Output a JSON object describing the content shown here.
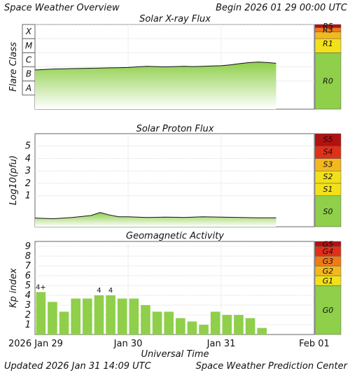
{
  "header": {
    "title": "Space Weather Overview",
    "begin": "Begin 2026 01 29 00:00 UTC",
    "updated": "Updated 2026 Jan 31 14:09 UTC",
    "credit": "Space Weather Prediction Center"
  },
  "colors": {
    "fill_green": "#8fcf4a",
    "bar_green": "#8fcf4a",
    "line": "#111111",
    "scale": [
      "#8fcf4a",
      "#f2e11a",
      "#f4b81f",
      "#ef7a1a",
      "#e0301a",
      "#b01212"
    ]
  },
  "x_axis": {
    "xlabel": "Universal Time",
    "ticks": [
      {
        "t": 0,
        "label": "2026 Jan 29"
      },
      {
        "t": 1,
        "label": "Jan 30"
      },
      {
        "t": 2,
        "label": "Jan 31"
      },
      {
        "t": 3,
        "label": "Feb 01"
      }
    ],
    "range_days": [
      0,
      3
    ]
  },
  "chart_data": [
    {
      "type": "area",
      "title": "Solar X-ray Flux",
      "ylabel": "Flare Class",
      "y_scale": "log",
      "ylim": [
        1e-09,
        0.001
      ],
      "y_ticks": [
        "A",
        "B",
        "C",
        "M",
        "X"
      ],
      "scale_labels": [
        "R0",
        "R1",
        "R3",
        "R5"
      ],
      "series": [
        {
          "x_days": [
            0,
            0.1,
            0.2,
            0.3,
            0.4,
            0.5,
            0.6,
            0.7,
            0.8,
            0.9,
            1.0,
            1.1,
            1.2,
            1.3,
            1.4,
            1.5,
            1.6,
            1.7,
            1.8,
            1.9,
            2.0,
            2.1,
            2.2,
            2.3,
            2.4,
            2.5,
            2.59
          ],
          "y": [
            6e-07,
            6.5e-07,
            7e-07,
            7.2e-07,
            7.5e-07,
            7.8e-07,
            8e-07,
            8.2e-07,
            8.5e-07,
            8.7e-07,
            9e-07,
            1e-06,
            1.1e-06,
            1.05e-06,
            1e-06,
            1.05e-06,
            1.1e-06,
            1.05e-06,
            1.1e-06,
            1.15e-06,
            1.2e-06,
            1.4e-06,
            1.7e-06,
            2e-06,
            2.2e-06,
            2e-06,
            1.8e-06
          ]
        }
      ]
    },
    {
      "type": "area",
      "title": "Solar Proton Flux",
      "ylabel": "Log10(pfu)",
      "ylim": [
        -1.5,
        6
      ],
      "y_ticks": [
        1,
        2,
        3,
        4,
        5
      ],
      "scale_labels": [
        "S0",
        "S1",
        "S2",
        "S3",
        "S4",
        "S5"
      ],
      "series": [
        {
          "x_days": [
            0,
            0.2,
            0.4,
            0.6,
            0.7,
            0.8,
            0.9,
            1.0,
            1.2,
            1.4,
            1.6,
            1.8,
            2.0,
            2.2,
            2.4,
            2.59
          ],
          "y": [
            -0.8,
            -0.85,
            -0.75,
            -0.6,
            -0.35,
            -0.55,
            -0.7,
            -0.7,
            -0.75,
            -0.72,
            -0.75,
            -0.7,
            -0.72,
            -0.75,
            -0.78,
            -0.78
          ]
        }
      ]
    },
    {
      "type": "bar",
      "title": "Geomagnetic Activity",
      "ylabel": "Kp index",
      "ylim": [
        0,
        9.5
      ],
      "y_ticks": [
        1,
        2,
        3,
        4,
        5,
        6,
        7,
        8,
        9
      ],
      "scale_labels": [
        "G0",
        "G1",
        "G2",
        "G3",
        "G4",
        "G5"
      ],
      "bar_width_days": 0.125,
      "values": [
        4.33,
        3.33,
        2.33,
        3.67,
        3.67,
        4.0,
        4.0,
        3.67,
        3.67,
        3.0,
        2.33,
        2.33,
        1.67,
        1.33,
        1.0,
        2.33,
        2.0,
        2.0,
        1.67,
        0.67
      ],
      "data_labels": {
        "0": "4+",
        "5": "4",
        "6": "4"
      }
    }
  ]
}
